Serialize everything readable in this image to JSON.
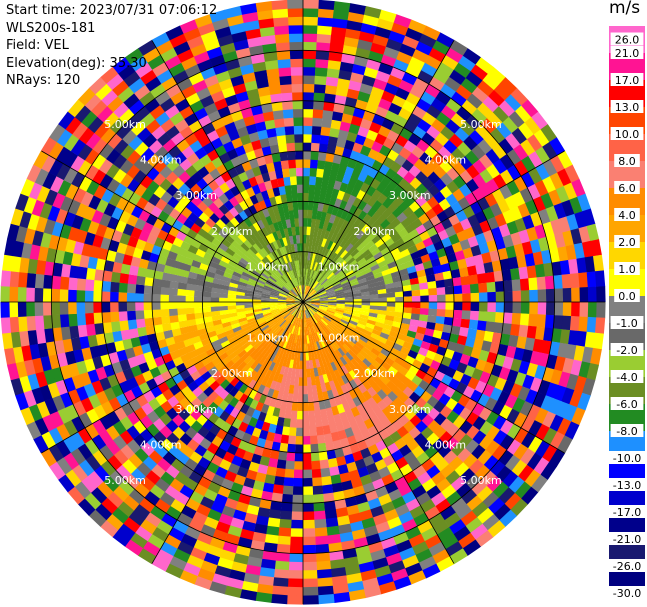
{
  "header": {
    "start_time": "Start time: 2023/07/31 07:06:12",
    "instrument": "WLS200s-181",
    "field": "Field: VEL",
    "elevation": "Elevation(deg): 35.30",
    "nrays": "NRays: 120"
  },
  "colorbar": {
    "unit": "m/s",
    "ticks": [
      "26.0",
      "21.0",
      "17.0",
      "13.0",
      "10.0",
      "8.0",
      "6.0",
      "4.0",
      "2.0",
      "1.0",
      "0.0",
      "-1.0",
      "-2.0",
      "-4.0",
      "-6.0",
      "-8.0",
      "-10.0",
      "-13.0",
      "-17.0",
      "-21.0",
      "-26.0",
      "-30.0"
    ],
    "colors": [
      "#ff66cc",
      "#ff1493",
      "#ff0000",
      "#ff4500",
      "#ff6347",
      "#fa8072",
      "#ff8c00",
      "#ffa500",
      "#ffd700",
      "#ffff00",
      "#808080",
      "#696969",
      "#9acd32",
      "#6b8e23",
      "#228b22",
      "#1e90ff",
      "#0000ff",
      "#0000cd",
      "#00008b",
      "#191970",
      "#000080"
    ]
  },
  "chart_data": {
    "type": "heatmap",
    "projection": "polar-ppi",
    "field": "VEL",
    "units": "m/s",
    "nrays": 120,
    "max_range_km": 6.0,
    "range_rings_km": [
      1.0,
      2.0,
      3.0,
      4.0,
      5.0
    ],
    "ring_labels": [
      "1.00km",
      "2.00km",
      "3.00km",
      "4.00km",
      "5.00km"
    ],
    "spoke_angles_deg": [
      0,
      30,
      60,
      90,
      120,
      150,
      180,
      210,
      240,
      270,
      300,
      330
    ],
    "color_scale": [
      -30,
      -26,
      -21,
      -17,
      -13,
      -10,
      -8,
      -6,
      -4,
      -2,
      -1,
      0,
      1,
      2,
      4,
      6,
      8,
      10,
      13,
      17,
      21,
      26
    ],
    "dominant_pattern": {
      "northern_sector": "negative velocities (-1 to -6 m/s)",
      "southern_sector": "positive velocities (1 to 8 m/s)",
      "beyond_approx_3km": "noise (mixed values spanning full scale)"
    }
  }
}
